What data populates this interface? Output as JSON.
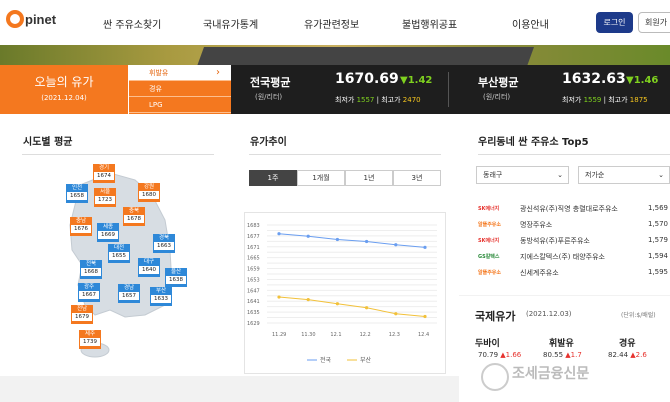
{
  "header": {
    "logo_text": "pinet",
    "nav": [
      "싼 주유소찾기",
      "국내유가통계",
      "유가관련정보",
      "불법행위공표",
      "이용안내"
    ],
    "login": "로그인",
    "join": "회원가"
  },
  "today": {
    "title": "오늘의 유가",
    "date": "(2021.12.04)",
    "fuels": [
      "휘발유",
      "경유",
      "LPG"
    ],
    "selected_chevron": "›"
  },
  "national": {
    "title": "전국평균",
    "unit": "(원/리터)",
    "value": "1670.69",
    "change": "▼1.42",
    "min_label": "최저가",
    "min": "1557",
    "max_label": "최고가",
    "max": "2470"
  },
  "busan": {
    "title": "부산평균",
    "unit": "(원/리터)",
    "value": "1632.63",
    "change": "▼1.46",
    "min_label": "최저가",
    "min": "1559",
    "max_label": "최고가",
    "max": "1875"
  },
  "regional": {
    "title": "시도별 평균",
    "regions": [
      {
        "name": "경기",
        "value": "1674",
        "color": "orange"
      },
      {
        "name": "인천",
        "value": "1658",
        "color": "blue"
      },
      {
        "name": "서울",
        "value": "1723",
        "color": "orange"
      },
      {
        "name": "강원",
        "value": "1680",
        "color": "orange"
      },
      {
        "name": "충북",
        "value": "1678",
        "color": "orange"
      },
      {
        "name": "충남",
        "value": "1676",
        "color": "orange"
      },
      {
        "name": "세종",
        "value": "1669",
        "color": "blue"
      },
      {
        "name": "대전",
        "value": "1655",
        "color": "blue"
      },
      {
        "name": "경북",
        "value": "1663",
        "color": "blue"
      },
      {
        "name": "전북",
        "value": "1668",
        "color": "blue"
      },
      {
        "name": "대구",
        "value": "1640",
        "color": "blue"
      },
      {
        "name": "울산",
        "value": "1638",
        "color": "blue"
      },
      {
        "name": "광주",
        "value": "1667",
        "color": "blue"
      },
      {
        "name": "경남",
        "value": "1657",
        "color": "blue"
      },
      {
        "name": "부산",
        "value": "1633",
        "color": "blue"
      },
      {
        "name": "전남",
        "value": "1679",
        "color": "orange"
      },
      {
        "name": "제주",
        "value": "1739",
        "color": "orange"
      }
    ]
  },
  "trend": {
    "title": "유가추이",
    "tabs": [
      "1주",
      "1개월",
      "1년",
      "3년"
    ],
    "legend": [
      "전국",
      "부산"
    ]
  },
  "chart_data": {
    "type": "line",
    "x": [
      "11.29",
      "11.30",
      "12.1",
      "12.2",
      "12.3",
      "12.4"
    ],
    "series": [
      {
        "name": "전국",
        "values": [
          1678.2,
          1676.8,
          1675.0,
          1673.9,
          1672.1,
          1670.7
        ],
        "color": "#6a9ef0"
      },
      {
        "name": "부산",
        "values": [
          1643.3,
          1641.9,
          1639.6,
          1637.4,
          1634.1,
          1632.6
        ],
        "color": "#f2c13a"
      }
    ],
    "yticks": [
      1683,
      1680,
      1677,
      1674,
      1671,
      1668,
      1665,
      1662,
      1659,
      1656,
      1653,
      1650,
      1647,
      1644,
      1641,
      1638,
      1635,
      1632,
      1629
    ],
    "ylabels": [
      "1683",
      "1677",
      "1671",
      "1665",
      "1659",
      "1653",
      "1647",
      "1641",
      "1635",
      "1629"
    ],
    "ylim": [
      1629,
      1683
    ],
    "grid": true,
    "legend_position": "bottom"
  },
  "cheap": {
    "title": "우리동네 싼 주유소 Top5",
    "district": "동래구",
    "sort": "저가순",
    "stations": [
      {
        "brand": "SK에너지",
        "name": "광신석유(주)직영 충렬대로주유소",
        "price": "1,569",
        "color": "#e6322d"
      },
      {
        "brand": "알뜰주유소",
        "name": "명장주유소",
        "price": "1,570",
        "color": "#f4781f"
      },
      {
        "brand": "SK에너지",
        "name": "동방석유(주)푸른주유소",
        "price": "1,579",
        "color": "#e6322d"
      },
      {
        "brand": "GS칼텍스",
        "name": "지에스칼텍스(주) 태양주유소",
        "price": "1,594",
        "color": "#2a8a3a"
      },
      {
        "brand": "알뜰주유소",
        "name": "신세계주유소",
        "price": "1,595",
        "color": "#f4781f"
      }
    ]
  },
  "intl": {
    "title": "국제유가",
    "date": "(2021.12.03)",
    "unit": "(단위:$/배럴)",
    "items": [
      {
        "name": "두바이",
        "value": "70.79",
        "change": "▲1.66"
      },
      {
        "name": "휘발유",
        "value": "80.55",
        "change": "▲1.7"
      },
      {
        "name": "경유",
        "value": "82.44",
        "change": "▲2.6"
      }
    ]
  },
  "watermark": "조세금융신문"
}
